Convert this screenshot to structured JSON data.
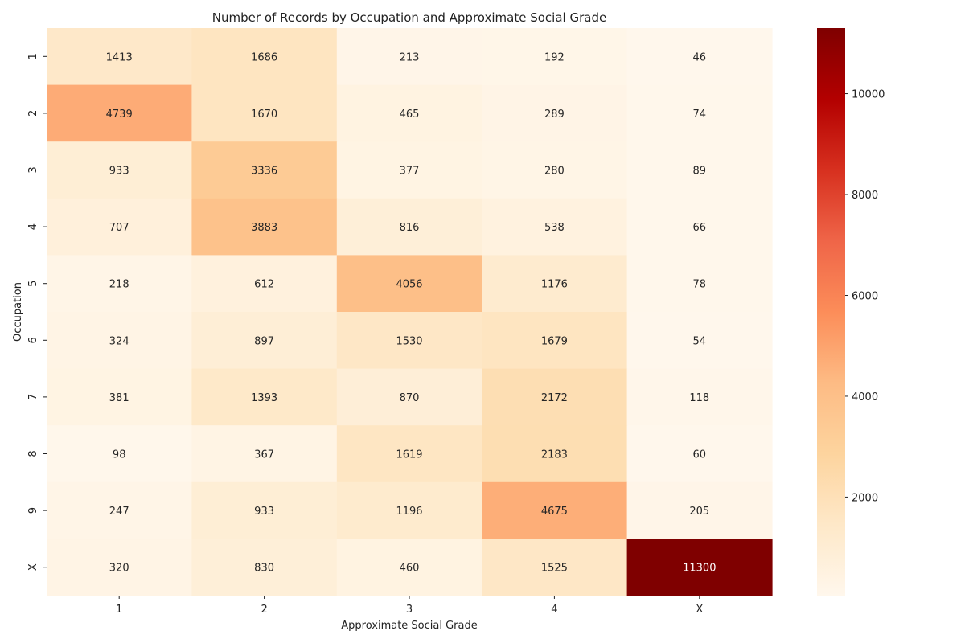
{
  "chart_data": {
    "type": "heatmap",
    "title": "Number of Records by Occupation and Approximate Social Grade",
    "xlabel": "Approximate Social Grade",
    "ylabel": "Occupation",
    "x_categories": [
      "1",
      "2",
      "3",
      "4",
      "X"
    ],
    "y_categories": [
      "1",
      "2",
      "3",
      "4",
      "5",
      "6",
      "7",
      "8",
      "9",
      "X"
    ],
    "values": [
      [
        1413,
        1686,
        213,
        192,
        46
      ],
      [
        4739,
        1670,
        465,
        289,
        74
      ],
      [
        933,
        3336,
        377,
        280,
        89
      ],
      [
        707,
        3883,
        816,
        538,
        66
      ],
      [
        218,
        612,
        4056,
        1176,
        78
      ],
      [
        324,
        897,
        1530,
        1679,
        54
      ],
      [
        381,
        1393,
        870,
        2172,
        118
      ],
      [
        98,
        367,
        1619,
        2183,
        60
      ],
      [
        247,
        933,
        1196,
        4675,
        205
      ],
      [
        320,
        830,
        460,
        1525,
        11300
      ]
    ],
    "colormap": "OrRd",
    "colorbar": {
      "ticks": [
        2000,
        4000,
        6000,
        8000,
        10000
      ],
      "tick_labels": [
        "2000",
        "4000",
        "6000",
        "8000",
        "10000"
      ]
    },
    "value_range": [
      46,
      11300
    ],
    "grid": false,
    "legend": "colorbar-right"
  }
}
